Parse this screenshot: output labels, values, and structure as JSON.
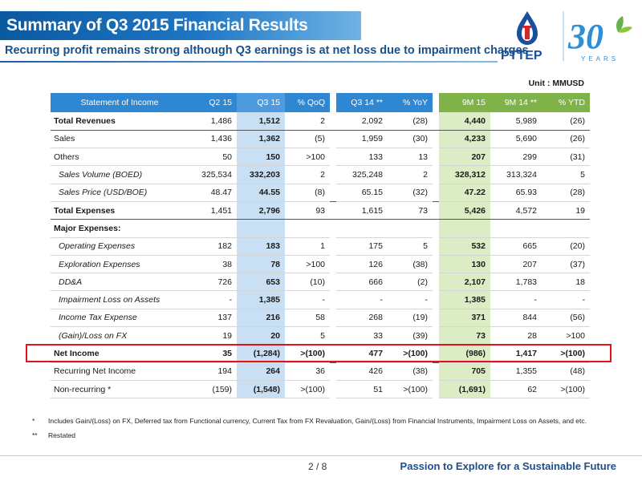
{
  "header": {
    "title": "Summary of Q3 2015 Financial Results",
    "subtitle": "Recurring profit remains strong although Q3 earnings is at net loss due to impairment charges",
    "logo_text": "PTTEP",
    "anniversary_number": "30",
    "anniversary_text": "YEARS"
  },
  "unit": "Unit : MMUSD",
  "table": {
    "headers": [
      "Statement of Income",
      "Q2 15",
      "Q3 15",
      "% QoQ",
      "Q3 14 **",
      "% YoY",
      "9M 15",
      "9M 14 **",
      "% YTD"
    ],
    "rows": [
      {
        "label": "Total Revenues",
        "values": [
          "1,486",
          "1,512",
          "2",
          "2,092",
          "(28)",
          "4,440",
          "5,989",
          "(26)"
        ]
      },
      {
        "label": "Sales",
        "values": [
          "1,436",
          "1,362",
          "(5)",
          "1,959",
          "(30)",
          "4,233",
          "5,690",
          "(26)"
        ]
      },
      {
        "label": "Others",
        "values": [
          "50",
          "150",
          ">100",
          "133",
          "13",
          "207",
          "299",
          "(31)"
        ]
      },
      {
        "label": "Sales Volume (BOED)",
        "values": [
          "325,534",
          "332,203",
          "2",
          "325,248",
          "2",
          "328,312",
          "313,324",
          "5"
        ]
      },
      {
        "label": "Sales Price (USD/BOE)",
        "values": [
          "48.47",
          "44.55",
          "(8)",
          "65.15",
          "(32)",
          "47.22",
          "65.93",
          "(28)"
        ]
      },
      {
        "label": "Total Expenses",
        "values": [
          "1,451",
          "2,796",
          "93",
          "1,615",
          "73",
          "5,426",
          "4,572",
          "19"
        ]
      },
      {
        "label": "Major Expenses:",
        "values": [
          "",
          "",
          "",
          "",
          "",
          "",
          "",
          ""
        ]
      },
      {
        "label": "Operating Expenses",
        "values": [
          "182",
          "183",
          "1",
          "175",
          "5",
          "532",
          "665",
          "(20)"
        ]
      },
      {
        "label": "Exploration Expenses",
        "values": [
          "38",
          "78",
          ">100",
          "126",
          "(38)",
          "130",
          "207",
          "(37)"
        ]
      },
      {
        "label": "DD&A",
        "values": [
          "726",
          "653",
          "(10)",
          "666",
          "(2)",
          "2,107",
          "1,783",
          "18"
        ]
      },
      {
        "label": "Impairment Loss on Assets",
        "values": [
          "-",
          "1,385",
          "-",
          "-",
          "-",
          "1,385",
          "-",
          "-"
        ]
      },
      {
        "label": "Income Tax Expense",
        "values": [
          "137",
          "216",
          "58",
          "268",
          "(19)",
          "371",
          "844",
          "(56)"
        ]
      },
      {
        "label": "(Gain)/Loss on FX",
        "values": [
          "19",
          "20",
          "5",
          "33",
          "(39)",
          "73",
          "28",
          ">100"
        ]
      },
      {
        "label": "Net Income",
        "values": [
          "35",
          "(1,284)",
          ">(100)",
          "477",
          ">(100)",
          "(986)",
          "1,417",
          ">(100)"
        ]
      },
      {
        "label": "Recurring Net Income",
        "values": [
          "194",
          "264",
          "36",
          "426",
          "(38)",
          "705",
          "1,355",
          "(48)"
        ]
      },
      {
        "label": "Non-recurring *",
        "values": [
          "(159)",
          "(1,548)",
          ">(100)",
          "51",
          ">(100)",
          "(1,691)",
          "62",
          ">(100)"
        ]
      }
    ]
  },
  "footnotes": [
    {
      "mark": "*",
      "text": "Includes Gain/(Loss) on FX, Deferred tax from Functional currency, Current Tax from FX Revaluation, Gain/(Loss) from Financial Instruments, Impairment Loss on Assets, and etc."
    },
    {
      "mark": "**",
      "text": "Restated"
    }
  ],
  "footer": {
    "page": "2 / 8",
    "tagline": "Passion to Explore for a Sustainable Future"
  },
  "colors": {
    "header_blue": "#2f86d1",
    "q3_highlight": "#c9dff3",
    "ytd_green": "#dcecc5",
    "net_income_box": "#e0121b"
  }
}
